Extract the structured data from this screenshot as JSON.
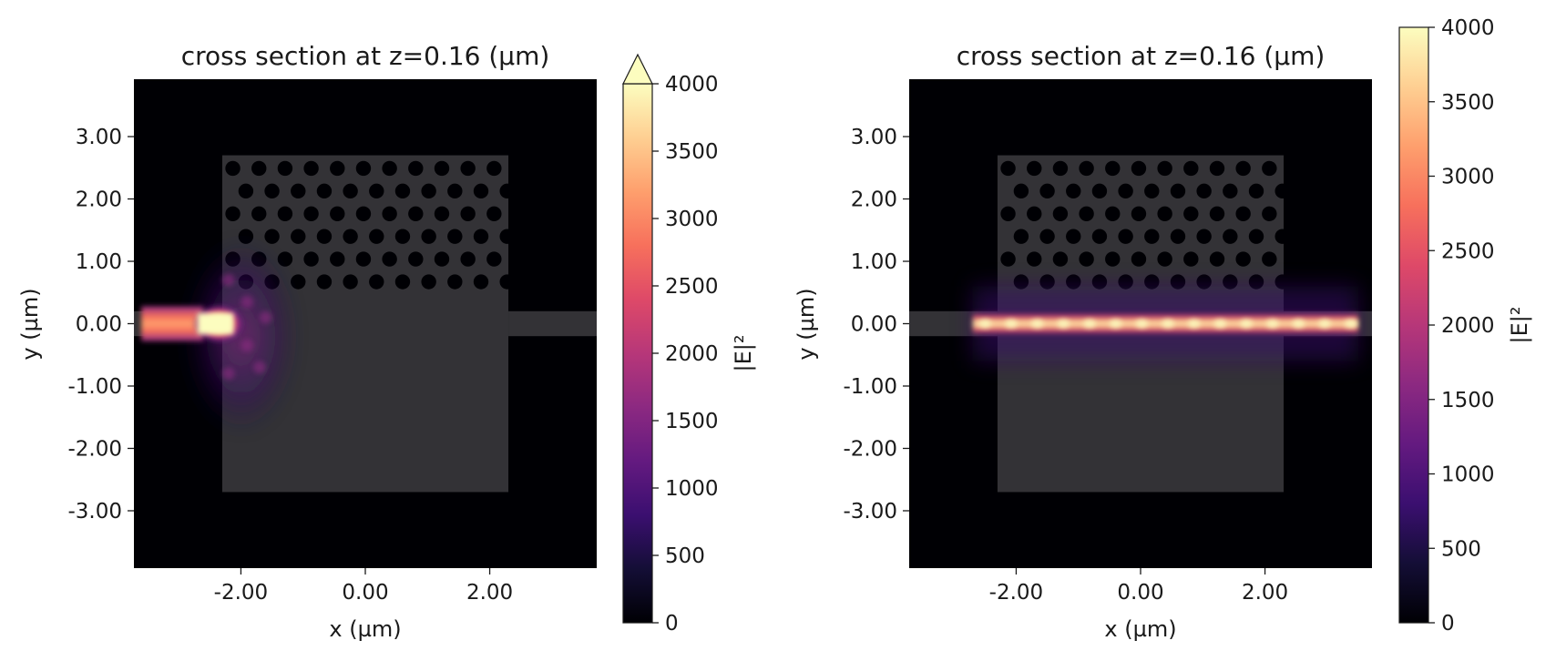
{
  "chart_data": [
    {
      "type": "heatmap",
      "title": "cross section at z=0.16 (µm)",
      "xlabel": "x (µm)",
      "ylabel": "y (µm)",
      "x_ticks": [
        "-2.00",
        "0.00",
        "2.00"
      ],
      "x_tick_values": [
        -2,
        0,
        2
      ],
      "y_ticks": [
        "3.00",
        "2.00",
        "1.00",
        "0.00",
        "-1.00",
        "-2.00",
        "-3.00"
      ],
      "y_tick_values": [
        3,
        2,
        1,
        0,
        -1,
        -2,
        -3
      ],
      "xlim": [
        -3.72,
        3.72
      ],
      "ylim": [
        -3.92,
        3.92
      ],
      "colormap": "magma",
      "colorbar": {
        "label": "|E|²",
        "range": [
          0,
          4000
        ],
        "ticks": [
          "0",
          "500",
          "1000",
          "1500",
          "2000",
          "2500",
          "3000",
          "3500",
          "4000"
        ],
        "tick_values": [
          0,
          500,
          1000,
          1500,
          2000,
          2500,
          3000,
          3500,
          4000
        ],
        "extend": "max"
      },
      "structure": {
        "slab_x": [
          -2.3,
          2.3
        ],
        "slab_y": [
          -2.7,
          2.7
        ],
        "holes_y": [
          0.4,
          2.5
        ],
        "waveguide_half_width": 0.2,
        "input_waveguide_x": [
          -3.72,
          -2.3
        ],
        "output_waveguide_x": [
          2.3,
          3.72
        ]
      },
      "field": {
        "description": "field localized near input edge",
        "hotspot_x": [
          -2.7,
          -2.0
        ]
      }
    },
    {
      "type": "heatmap",
      "title": "cross section at z=0.16 (µm)",
      "xlabel": "x (µm)",
      "ylabel": "y (µm)",
      "x_ticks": [
        "-2.00",
        "0.00",
        "2.00"
      ],
      "x_tick_values": [
        -2,
        0,
        2
      ],
      "y_ticks": [
        "3.00",
        "2.00",
        "1.00",
        "0.00",
        "-1.00",
        "-2.00",
        "-3.00"
      ],
      "y_tick_values": [
        3,
        2,
        1,
        0,
        -1,
        -2,
        -3
      ],
      "xlim": [
        -3.72,
        3.72
      ],
      "ylim": [
        -3.92,
        3.92
      ],
      "colormap": "magma",
      "colorbar": {
        "label": "|E|²",
        "range": [
          0,
          4000
        ],
        "ticks": [
          "0",
          "500",
          "1000",
          "1500",
          "2000",
          "2500",
          "3000",
          "3500",
          "4000"
        ],
        "tick_values": [
          0,
          500,
          1000,
          1500,
          2000,
          2500,
          3000,
          3500,
          4000
        ],
        "extend": "neither"
      },
      "structure": {
        "slab_x": [
          -2.3,
          2.3
        ],
        "slab_y": [
          -2.7,
          2.7
        ],
        "holes_y": [
          0.4,
          2.5
        ],
        "waveguide_half_width": 0.2,
        "input_waveguide_x": [
          -3.72,
          -2.3
        ],
        "output_waveguide_x": [
          2.3,
          3.72
        ]
      },
      "field": {
        "description": "field guided along waveguide",
        "guided_x": [
          -2.7,
          3.5
        ]
      }
    }
  ]
}
